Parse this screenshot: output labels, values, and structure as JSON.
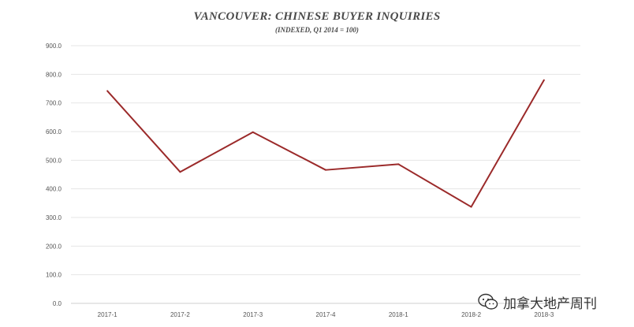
{
  "chart_data": {
    "type": "line",
    "title": "VANCOUVER: CHINESE BUYER INQUIRIES",
    "subtitle": "(INDEXED, Q1 2014 = 100)",
    "categories": [
      "2017-1",
      "2017-2",
      "2017-3",
      "2017-4",
      "2018-1",
      "2018-2",
      "2018-3"
    ],
    "series": [
      {
        "values": [
          742,
          459,
          598,
          466,
          486,
          337,
          780
        ],
        "color": "#9b2a2a"
      }
    ],
    "yticks": [
      "0.0",
      "100.0",
      "200.0",
      "300.0",
      "400.0",
      "500.0",
      "600.0",
      "700.0",
      "800.0",
      "900.0"
    ],
    "ylim": [
      0,
      900
    ],
    "grid": true,
    "legend": "none"
  },
  "watermark": {
    "text": "加拿大地产周刊",
    "icon": "wechat-icon"
  }
}
